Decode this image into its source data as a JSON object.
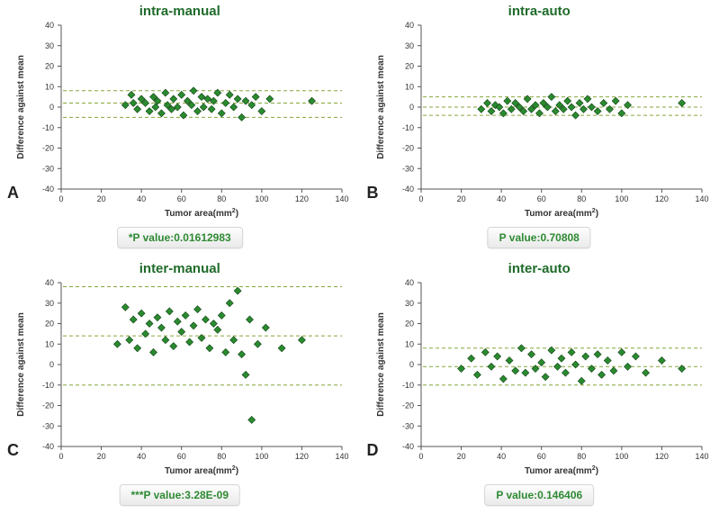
{
  "global": {
    "marker_color": "#2a8a2f",
    "marker_edge": "#0f3f12",
    "ref_line_color": "#86a63b",
    "title_color": "#1f6b2a",
    "badge_text_color": "#2e8a33",
    "background_color": "#ffffff",
    "marker_size": 8,
    "font_family": "Verdana",
    "xlabel": "Tumor area(mm",
    "xlabel_sup": "2",
    "xlabel_suffix": ")",
    "ylabel": "Difference against mean",
    "xlabel_fontsize": 10,
    "ylabel_fontsize": 10,
    "title_fontsize": 15,
    "tick_fontsize": 9
  },
  "panels": {
    "A": {
      "letter": "A",
      "title": "intra-manual",
      "badge": "*P value:0.01612983",
      "xlim": [
        0,
        140
      ],
      "xtick_step": 20,
      "ylim": [
        -40,
        40
      ],
      "ytick_step": 10,
      "ref_lines": [
        -5,
        2,
        8
      ],
      "points": [
        [
          32,
          1
        ],
        [
          35,
          6
        ],
        [
          36,
          2
        ],
        [
          38,
          -1
        ],
        [
          40,
          4
        ],
        [
          42,
          2
        ],
        [
          44,
          -2
        ],
        [
          46,
          5
        ],
        [
          47,
          0
        ],
        [
          48,
          3
        ],
        [
          50,
          -3
        ],
        [
          52,
          7
        ],
        [
          53,
          1
        ],
        [
          55,
          -1
        ],
        [
          56,
          4
        ],
        [
          58,
          0
        ],
        [
          60,
          6
        ],
        [
          61,
          -4
        ],
        [
          63,
          3
        ],
        [
          65,
          1
        ],
        [
          66,
          8
        ],
        [
          68,
          -2
        ],
        [
          70,
          5
        ],
        [
          71,
          0
        ],
        [
          73,
          4
        ],
        [
          75,
          -1
        ],
        [
          76,
          3
        ],
        [
          78,
          7
        ],
        [
          80,
          -3
        ],
        [
          82,
          2
        ],
        [
          84,
          6
        ],
        [
          86,
          0
        ],
        [
          88,
          4
        ],
        [
          90,
          -5
        ],
        [
          92,
          3
        ],
        [
          95,
          1
        ],
        [
          97,
          5
        ],
        [
          100,
          -2
        ],
        [
          104,
          4
        ],
        [
          125,
          3
        ]
      ]
    },
    "B": {
      "letter": "B",
      "title": "intra-auto",
      "badge": "P value:0.70808",
      "xlim": [
        0,
        140
      ],
      "xtick_step": 20,
      "ylim": [
        -40,
        40
      ],
      "ytick_step": 10,
      "ref_lines": [
        -4,
        0,
        5
      ],
      "points": [
        [
          30,
          -1
        ],
        [
          33,
          2
        ],
        [
          35,
          -2
        ],
        [
          37,
          1
        ],
        [
          39,
          0
        ],
        [
          41,
          -3
        ],
        [
          43,
          3
        ],
        [
          45,
          -1
        ],
        [
          47,
          2
        ],
        [
          49,
          0
        ],
        [
          51,
          -2
        ],
        [
          53,
          4
        ],
        [
          55,
          -1
        ],
        [
          57,
          1
        ],
        [
          59,
          -3
        ],
        [
          61,
          2
        ],
        [
          63,
          0
        ],
        [
          65,
          5
        ],
        [
          67,
          -2
        ],
        [
          69,
          1
        ],
        [
          71,
          -1
        ],
        [
          73,
          3
        ],
        [
          75,
          0
        ],
        [
          77,
          -4
        ],
        [
          79,
          2
        ],
        [
          81,
          -1
        ],
        [
          83,
          4
        ],
        [
          85,
          0
        ],
        [
          88,
          -2
        ],
        [
          91,
          2
        ],
        [
          94,
          -1
        ],
        [
          97,
          3
        ],
        [
          100,
          -3
        ],
        [
          103,
          1
        ],
        [
          130,
          2
        ]
      ]
    },
    "C": {
      "letter": "C",
      "title": "inter-manual",
      "badge": "***P value:3.28E-09",
      "xlim": [
        0,
        140
      ],
      "xtick_step": 20,
      "ylim": [
        -40,
        40
      ],
      "ytick_step": 10,
      "ref_lines": [
        -10,
        14,
        38
      ],
      "points": [
        [
          28,
          10
        ],
        [
          32,
          28
        ],
        [
          34,
          12
        ],
        [
          36,
          22
        ],
        [
          38,
          8
        ],
        [
          40,
          25
        ],
        [
          42,
          15
        ],
        [
          44,
          20
        ],
        [
          46,
          6
        ],
        [
          48,
          23
        ],
        [
          50,
          18
        ],
        [
          52,
          12
        ],
        [
          54,
          26
        ],
        [
          56,
          9
        ],
        [
          58,
          21
        ],
        [
          60,
          16
        ],
        [
          62,
          24
        ],
        [
          64,
          11
        ],
        [
          66,
          19
        ],
        [
          68,
          27
        ],
        [
          70,
          13
        ],
        [
          72,
          22
        ],
        [
          74,
          8
        ],
        [
          76,
          20
        ],
        [
          78,
          17
        ],
        [
          80,
          24
        ],
        [
          82,
          6
        ],
        [
          84,
          30
        ],
        [
          86,
          12
        ],
        [
          88,
          36
        ],
        [
          90,
          5
        ],
        [
          92,
          -5
        ],
        [
          94,
          22
        ],
        [
          95,
          -27
        ],
        [
          98,
          10
        ],
        [
          102,
          18
        ],
        [
          110,
          8
        ],
        [
          120,
          12
        ]
      ]
    },
    "D": {
      "letter": "D",
      "title": "inter-auto",
      "badge": "P value:0.146406",
      "xlim": [
        0,
        140
      ],
      "xtick_step": 20,
      "ylim": [
        -40,
        40
      ],
      "ytick_step": 10,
      "ref_lines": [
        -10,
        -1,
        8
      ],
      "points": [
        [
          20,
          -2
        ],
        [
          25,
          3
        ],
        [
          28,
          -5
        ],
        [
          32,
          6
        ],
        [
          35,
          -1
        ],
        [
          38,
          4
        ],
        [
          41,
          -7
        ],
        [
          44,
          2
        ],
        [
          47,
          -3
        ],
        [
          50,
          8
        ],
        [
          52,
          -4
        ],
        [
          55,
          5
        ],
        [
          57,
          -2
        ],
        [
          60,
          1
        ],
        [
          62,
          -6
        ],
        [
          65,
          7
        ],
        [
          68,
          -1
        ],
        [
          70,
          3
        ],
        [
          72,
          -4
        ],
        [
          75,
          6
        ],
        [
          77,
          0
        ],
        [
          80,
          -8
        ],
        [
          82,
          4
        ],
        [
          85,
          -2
        ],
        [
          88,
          5
        ],
        [
          90,
          -5
        ],
        [
          93,
          2
        ],
        [
          96,
          -3
        ],
        [
          100,
          6
        ],
        [
          103,
          -1
        ],
        [
          107,
          4
        ],
        [
          112,
          -4
        ],
        [
          120,
          2
        ],
        [
          130,
          -2
        ]
      ]
    }
  }
}
